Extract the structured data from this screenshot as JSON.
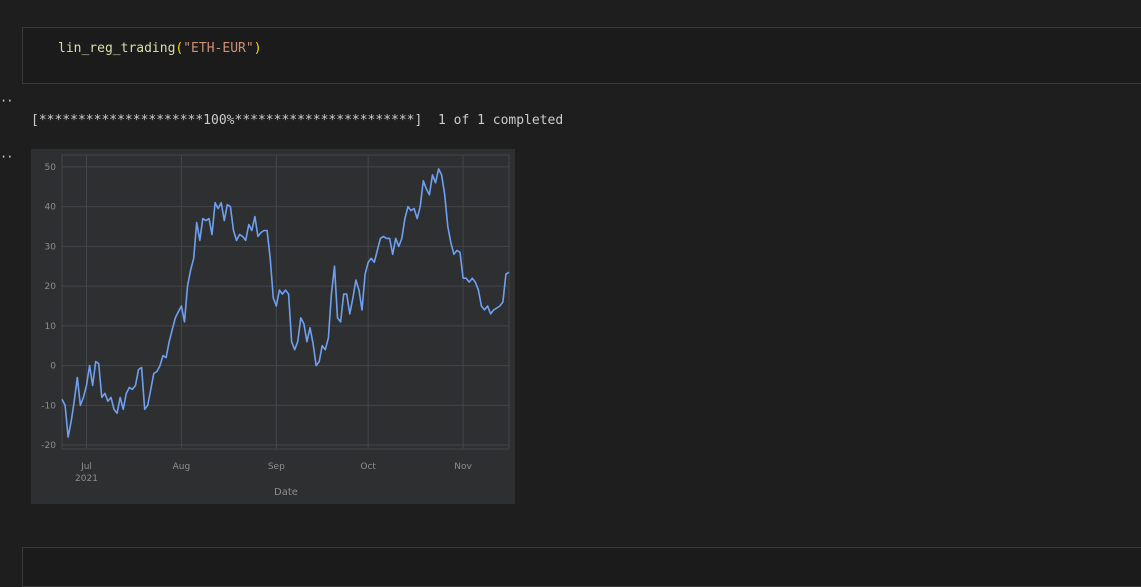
{
  "input_cell": {
    "function_name": "lin_reg_trading",
    "argument": "\"ETH-EUR\""
  },
  "output": {
    "progress": "[*********************100%***********************]  1 of 1 completed"
  },
  "colors": {
    "line": "#6ea0f2",
    "plot_background": "#2e2f30",
    "grid": "#44464a"
  },
  "chart_data": {
    "type": "line",
    "xlabel": "Date",
    "ylabel": "",
    "ylim": [
      -21,
      53
    ],
    "yticks": [
      -20,
      -10,
      0,
      10,
      20,
      30,
      40,
      50
    ],
    "xlim": [
      "2021-06-23",
      "2021-11-16"
    ],
    "xticks": [
      {
        "date": "2021-07-01",
        "label": "Jul",
        "sublabel": "2021"
      },
      {
        "date": "2021-08-01",
        "label": "Aug",
        "sublabel": ""
      },
      {
        "date": "2021-09-01",
        "label": "Sep",
        "sublabel": ""
      },
      {
        "date": "2021-10-01",
        "label": "Oct",
        "sublabel": ""
      },
      {
        "date": "2021-11-01",
        "label": "Nov",
        "sublabel": ""
      }
    ],
    "grid": true,
    "x_start": "2021-06-23",
    "series": [
      {
        "name": "",
        "values": [
          -8.5,
          -10,
          -18,
          -14,
          -9,
          -3,
          -10,
          -8,
          -5,
          0,
          -5,
          1,
          0.5,
          -8,
          -7,
          -9,
          -8,
          -11,
          -12,
          -8,
          -11,
          -7,
          -5.5,
          -6,
          -5,
          -1,
          -0.5,
          -11,
          -10,
          -6,
          -2,
          -1.5,
          0,
          2.5,
          2,
          6,
          9,
          12,
          13.5,
          15,
          11,
          20,
          24,
          27,
          36,
          31.5,
          37,
          36.5,
          37,
          33,
          41,
          39.5,
          41,
          36.5,
          40.5,
          40,
          34,
          31.5,
          33,
          32.5,
          31.5,
          35.5,
          34,
          37.5,
          32.5,
          33.5,
          34,
          34,
          27,
          17,
          15,
          19,
          18,
          19,
          18,
          6,
          4,
          6,
          12,
          10.5,
          6,
          9.5,
          5.5,
          0,
          1,
          5,
          4,
          7,
          18,
          25,
          12,
          11,
          18,
          18,
          13,
          17,
          21.5,
          19,
          14,
          23,
          26,
          27,
          26,
          29,
          32,
          32.5,
          32,
          32,
          28,
          32,
          30,
          32,
          37,
          40,
          39,
          39.5,
          37,
          40,
          46.5,
          44.5,
          43,
          48,
          46,
          49.5,
          48,
          43,
          35,
          31,
          28,
          29,
          28.5,
          22,
          22,
          21,
          22,
          21,
          19,
          15,
          14,
          15,
          13,
          14,
          14.5,
          15,
          16,
          23,
          23.5
        ]
      }
    ]
  }
}
